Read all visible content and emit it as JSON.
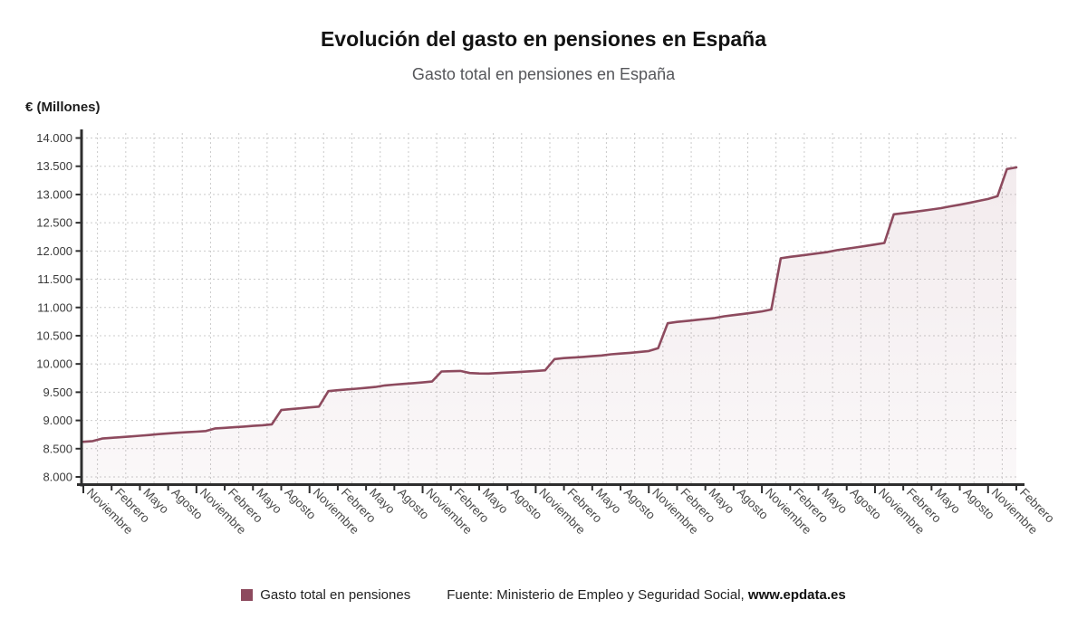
{
  "source": {
    "prefix": "Fuente: Ministerio de Empleo y Seguridad Social,",
    "link": "www.epdata.es"
  },
  "chart_data": {
    "type": "area",
    "title": "Evolución del gasto en pensiones en España",
    "subtitle": "Gasto total en pensiones en España",
    "ylabel": "€ (Millones)",
    "ylim": [
      8000,
      14000
    ],
    "grid": true,
    "legend_position": "bottom",
    "x_tick_every_months": 3,
    "x_tick_labels": [
      "Noviembre",
      "Febrero",
      "Mayo",
      "Agosto",
      "Noviembre",
      "Febrero",
      "Mayo",
      "Agosto",
      "Noviembre",
      "Febrero",
      "Mayo",
      "Agosto",
      "Noviembre",
      "Febrero",
      "Mayo",
      "Agosto",
      "Noviembre",
      "Febrero",
      "Mayo",
      "Agosto",
      "Noviembre",
      "Febrero",
      "Mayo",
      "Agosto",
      "Noviembre",
      "Febrero",
      "Mayo",
      "Agosto",
      "Noviembre",
      "Febrero",
      "Mayo",
      "Agosto",
      "Noviembre",
      "Febrero"
    ],
    "y_ticks": {
      "values": [
        8000,
        8500,
        9000,
        9500,
        10000,
        10500,
        11000,
        11500,
        12000,
        12500,
        13000,
        13500,
        14000
      ],
      "labels": [
        "8.000",
        "8.500",
        "9.000",
        "9.500",
        "10.000",
        "10.500",
        "11.000",
        "11.500",
        "12.000",
        "12.500",
        "13.000",
        "13.500",
        "14.000"
      ]
    },
    "series": [
      {
        "name": "Gasto total en pensiones",
        "color": "#8d4a5e",
        "values": [
          8622,
          8634,
          8680,
          8692,
          8704,
          8716,
          8729,
          8742,
          8758,
          8771,
          8782,
          8791,
          8801,
          8812,
          8859,
          8869,
          8880,
          8891,
          8903,
          8915,
          8931,
          9184,
          9200,
          9215,
          9230,
          9245,
          9519,
          9535,
          9549,
          9562,
          9576,
          9592,
          9619,
          9634,
          9647,
          9660,
          9673,
          9688,
          9866,
          9872,
          9876,
          9839,
          9832,
          9830,
          9840,
          9847,
          9855,
          9865,
          9876,
          9887,
          10086,
          10103,
          10114,
          10125,
          10137,
          10150,
          10171,
          10184,
          10197,
          10212,
          10228,
          10280,
          10721,
          10744,
          10761,
          10778,
          10795,
          10814,
          10844,
          10865,
          10885,
          10907,
          10931,
          10964,
          11871,
          11896,
          11916,
          11938,
          11960,
          11983,
          12015,
          12039,
          12063,
          12088,
          12114,
          12141,
          12650,
          12668,
          12690,
          12712,
          12735,
          12758,
          12790,
          12820,
          12852,
          12886,
          12920,
          12970,
          13450,
          13480
        ]
      }
    ],
    "colors": {
      "line": "#8d4a5e",
      "area_top": "rgba(141,74,94,0.11)",
      "area_bottom": "rgba(141,74,94,0.04)",
      "grid": "#cbcbcb",
      "axis": "#2e2e2e",
      "y_label_text": "#3a3a3a",
      "x_label_text": "#4a4a4a"
    }
  }
}
